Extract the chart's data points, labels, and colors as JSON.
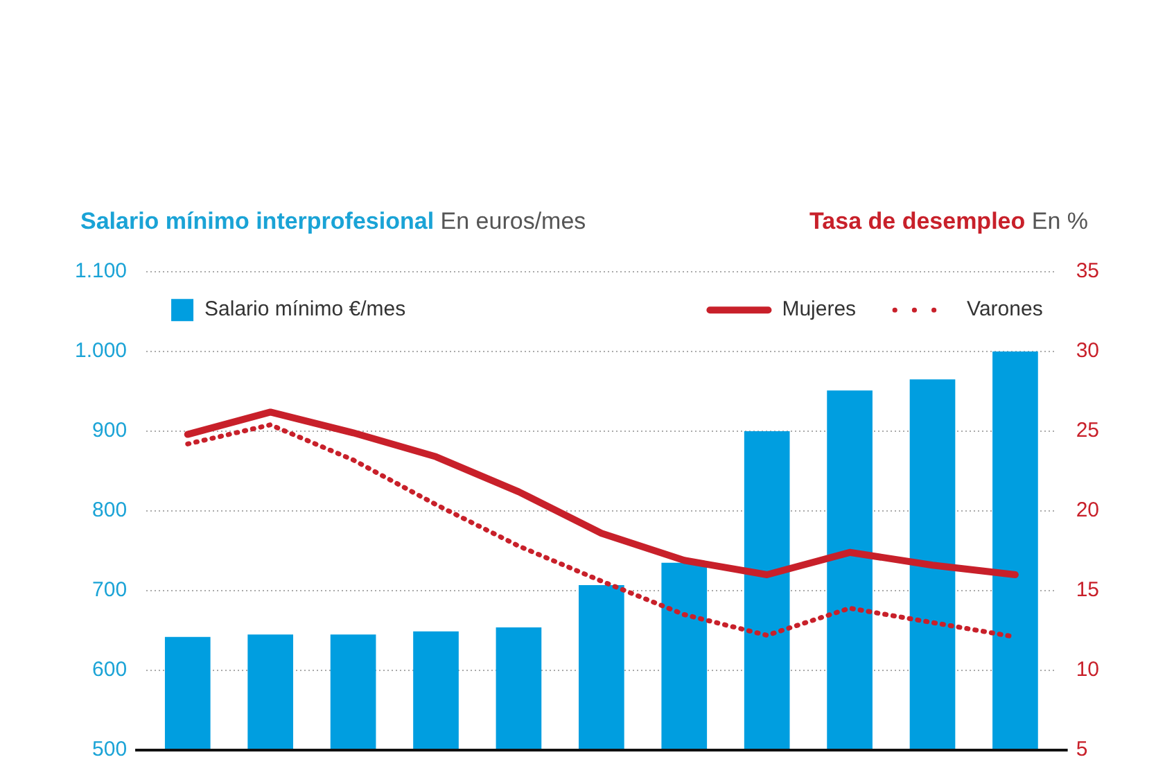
{
  "chart_data": {
    "type": "bar",
    "ylabel": "Salario mínimo interprofesional",
    "y2label": "Tasa de desempleo",
    "annotations": [
      "En euros/mes",
      "En %"
    ],
    "categories": [
      null,
      null,
      null,
      null,
      null,
      null,
      null,
      null,
      null,
      null,
      null
    ],
    "series": [
      {
        "name": "Salario mínimo €/mes",
        "color": "#009ee0",
        "values": [
          642,
          645,
          645,
          649,
          654,
          707,
          735,
          900,
          951,
          965,
          1000
        ]
      },
      {
        "name": "Mujeres",
        "type": "line",
        "axis": "y2",
        "color": "#c8202a",
        "line_style": "solid",
        "values": [
          24.8,
          26.2,
          24.9,
          23.4,
          21.2,
          18.6,
          16.9,
          16.0,
          17.4,
          16.6,
          16.0
        ]
      },
      {
        "name": "Varones",
        "type": "line",
        "axis": "y2",
        "color": "#c8202a",
        "line_style": "dotted",
        "values": [
          24.2,
          25.4,
          23.2,
          20.4,
          17.8,
          15.6,
          13.5,
          12.2,
          13.9,
          13.0,
          12.1
        ]
      }
    ],
    "ylim": [
      500,
      1100
    ],
    "yticks": [
      500,
      600,
      700,
      800,
      900,
      {
        "value": 1000,
        "label": "1.000"
      },
      {
        "value": 1100,
        "label": "1.100"
      }
    ],
    "y2lim": [
      5,
      35
    ],
    "y2ticks": [
      5,
      10,
      15,
      20,
      25,
      30,
      35
    ],
    "grid": "y",
    "legend": "top",
    "marker": "none"
  }
}
